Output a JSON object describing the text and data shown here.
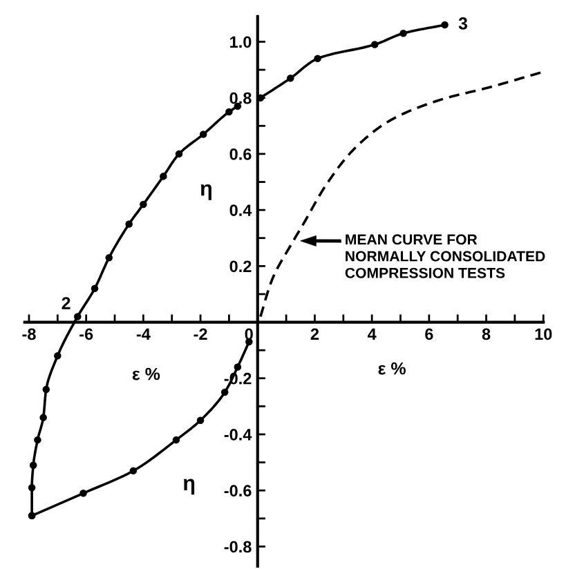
{
  "chart_data": {
    "type": "line",
    "xlabel": "ε %",
    "ylabel": "η",
    "xlim": [
      -8.15,
      10.0
    ],
    "ylim": [
      -0.87,
      1.09
    ],
    "xticks": [
      -8,
      {
        "value": -7,
        "label": null
      },
      -6,
      {
        "value": -5,
        "label": null
      },
      -4,
      {
        "value": -3,
        "label": null
      },
      -2,
      {
        "value": -1,
        "label": null
      },
      0,
      {
        "value": 1,
        "label": null
      },
      2,
      {
        "value": 3,
        "label": null
      },
      4,
      {
        "value": 5,
        "label": null
      },
      6,
      {
        "value": 7,
        "label": null
      },
      8,
      {
        "value": 9,
        "label": null
      },
      10
    ],
    "yticks": [
      -0.8,
      {
        "value": -0.7,
        "label": null
      },
      -0.6,
      {
        "value": -0.5,
        "label": null
      },
      -0.4,
      {
        "value": -0.3,
        "label": null
      },
      -0.2,
      {
        "value": -0.1,
        "label": null
      },
      {
        "value": 0.1,
        "label": null
      },
      0.2,
      {
        "value": 0.3,
        "label": null
      },
      0.4,
      {
        "value": 0.5,
        "label": null
      },
      0.6,
      {
        "value": 0.7,
        "label": null
      },
      0.8,
      {
        "value": 0.9,
        "label": null
      },
      {
        "value": 1.0,
        "label": "1.0"
      }
    ],
    "series": [
      {
        "color": "#000000",
        "marker": "circle",
        "line_style": "solid",
        "x": [
          -7.9,
          -7.9,
          -7.85,
          -7.7,
          -7.5,
          -7.4,
          -7.0,
          -6.3,
          -5.7,
          -5.2,
          -4.5,
          -4.0,
          -3.3,
          -2.75,
          -1.9,
          -1.0,
          -0.7
        ],
        "values": [
          -0.69,
          -0.59,
          -0.51,
          -0.42,
          -0.34,
          -0.24,
          -0.12,
          0.02,
          0.12,
          0.23,
          0.35,
          0.42,
          0.52,
          0.6,
          0.67,
          0.75,
          0.77
        ]
      },
      {
        "color": "#000000",
        "marker": "circle",
        "line_style": "solid",
        "x": [
          0.1,
          1.15,
          2.1,
          4.1,
          5.1,
          6.55
        ],
        "values": [
          0.8,
          0.87,
          0.94,
          0.99,
          1.03,
          1.06
        ]
      },
      {
        "color": "#000000",
        "marker": "circle",
        "line_style": "solid",
        "x": [
          -7.9,
          -6.1,
          -4.35,
          -2.85,
          -2.0,
          -1.15,
          -0.7,
          -0.3
        ],
        "values": [
          -0.69,
          -0.61,
          -0.53,
          -0.42,
          -0.35,
          -0.25,
          -0.16,
          -0.07
        ]
      },
      {
        "color": "#000000",
        "marker": "none",
        "line_style": "dashed",
        "x": [
          0.1,
          0.5,
          1.25,
          1.6,
          2.4,
          3.4,
          4.65,
          6.3,
          8.2,
          9.9
        ],
        "values": [
          0.02,
          0.15,
          0.29,
          0.35,
          0.49,
          0.62,
          0.72,
          0.79,
          0.84,
          0.89
        ]
      }
    ],
    "annotations": [
      {
        "text": "2",
        "x": -6.3,
        "y": 0.02
      },
      {
        "text": "3",
        "x": 6.55,
        "y": 1.06
      },
      "MEAN CURVE FOR\nNORMALLY CONSOLIDATED\nCOMPRESSION TESTS",
      "ε %",
      "η"
    ]
  }
}
